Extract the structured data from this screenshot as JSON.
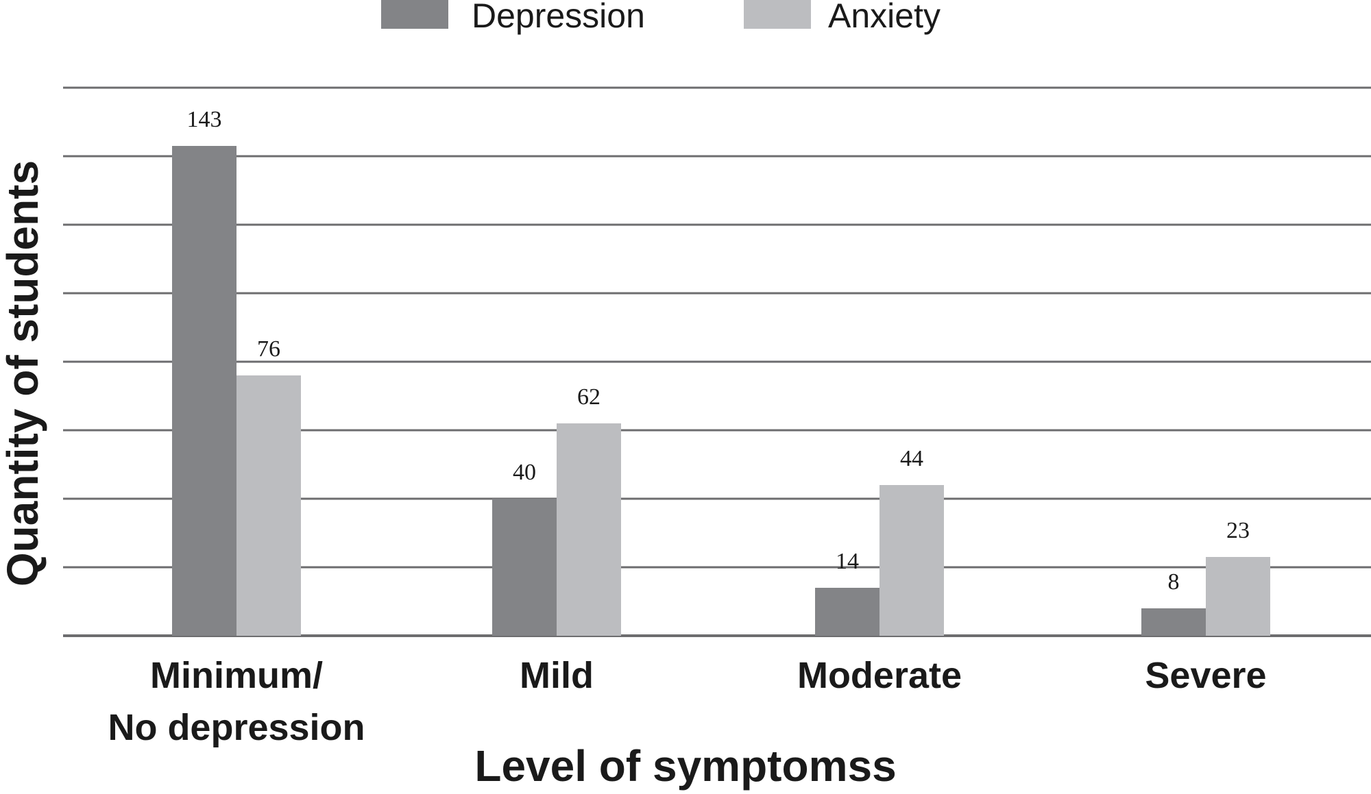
{
  "chart_data": {
    "type": "bar",
    "categories": [
      "Minimum/\nNo depression",
      "Mild",
      "Moderate",
      "Severe"
    ],
    "series": [
      {
        "name": "Depression",
        "values": [
          143,
          40,
          14,
          8
        ],
        "color": "#838487"
      },
      {
        "name": "Anxiety",
        "values": [
          76,
          62,
          44,
          23
        ],
        "color": "#bcbdc0"
      }
    ],
    "xlabel": "Level of symptomss",
    "ylabel": "Quantity of students",
    "ylim": [
      0,
      160
    ],
    "grid": true,
    "gridline_step": 20,
    "legend_position": "top-center",
    "colors": {
      "gridline": "#6d6d6f",
      "text": "#1a1a1a"
    }
  }
}
